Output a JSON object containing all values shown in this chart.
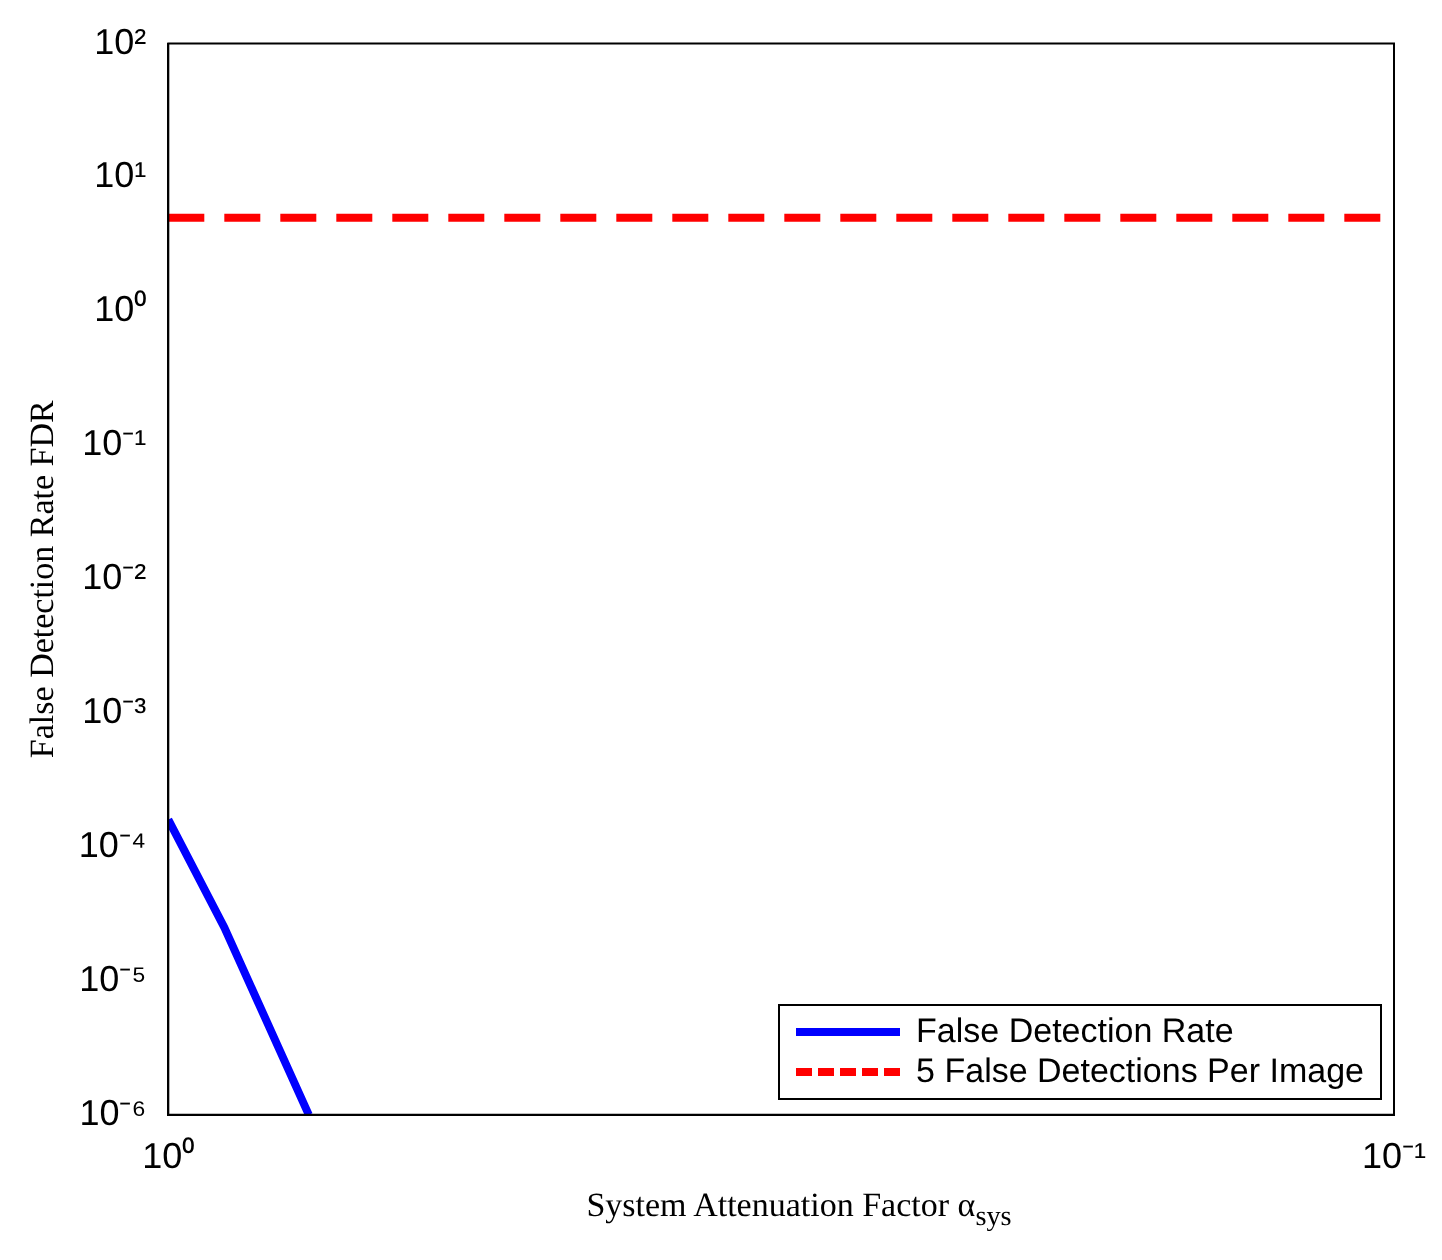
{
  "chart_data": {
    "type": "line",
    "xlabel": "System Attenuation Factor α$_{sys}$",
    "ylabel": "False Detection Rate FDR",
    "log": "xy",
    "xlim": [
      1,
      0.1
    ],
    "xticks": [
      {
        "value": 1,
        "label": "10⁰"
      },
      {
        "value": 0.1,
        "label": "10⁻¹"
      }
    ],
    "ylim": [
      1e-06,
      100
    ],
    "yticks": [
      {
        "value": 1e-06,
        "label": "10⁻⁶"
      },
      {
        "value": 1e-05,
        "label": "10⁻⁵"
      },
      {
        "value": 0.0001,
        "label": "10⁻⁴"
      },
      {
        "value": 0.001,
        "label": "10⁻³"
      },
      {
        "value": 0.01,
        "label": "10⁻²"
      },
      {
        "value": 0.1,
        "label": "10⁻¹"
      },
      {
        "value": 1,
        "label": "10⁰"
      },
      {
        "value": 10,
        "label": "10¹"
      },
      {
        "value": 100,
        "label": "10²"
      }
    ],
    "grid": false,
    "legend": "bottom right",
    "marker": "none",
    "series": [
      {
        "name": "False Detection Rate",
        "color": "#0000ff",
        "x": [
          1,
          0.9,
          0.768
        ],
        "values": [
          0.00016,
          2.5e-05,
          1e-06
        ],
        "line_style": "solid"
      },
      {
        "name": "5 False Detections Per Image",
        "color": "#ff0000",
        "x": [
          1,
          0.1
        ],
        "values": [
          5,
          5
        ],
        "line_style": "dashed"
      }
    ]
  }
}
